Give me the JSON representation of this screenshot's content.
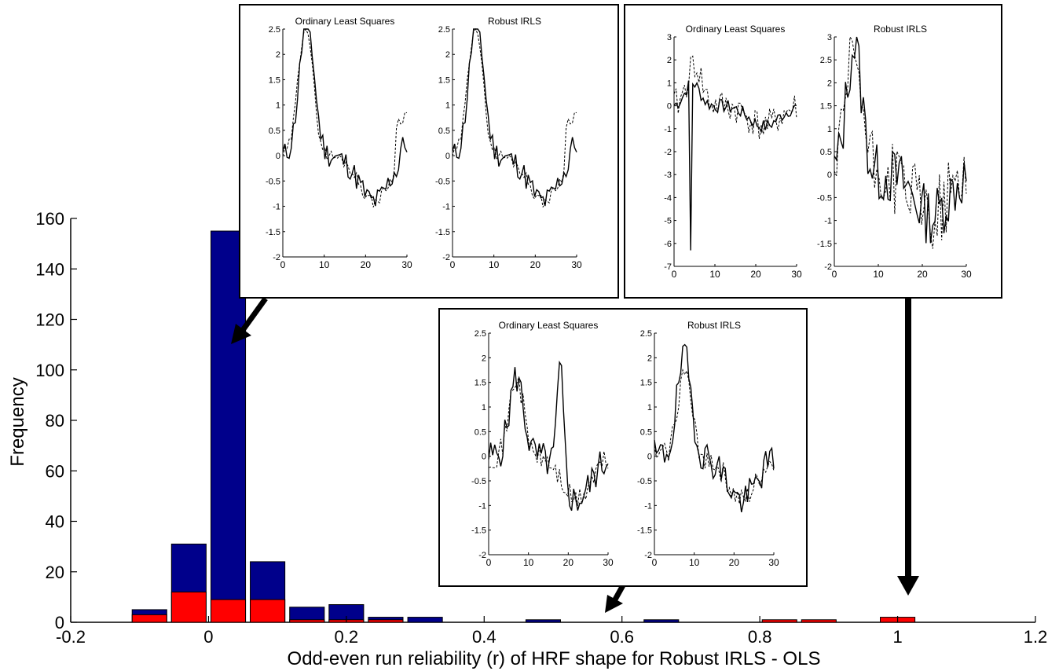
{
  "chart_data": {
    "type": "bar",
    "xlabel": "Odd-even run reliability (r) of HRF shape for Robust IRLS - OLS",
    "ylabel": "Frequency",
    "xlim": [
      -0.2,
      1.2
    ],
    "ylim": [
      0,
      160
    ],
    "x_ticks": [
      "-0.2",
      "0",
      "0.2",
      "0.4",
      "0.6",
      "0.8",
      "1",
      "1.2"
    ],
    "x_tick_values": [
      -0.2,
      0,
      0.2,
      0.4,
      0.6,
      0.8,
      1.0,
      1.2
    ],
    "y_ticks": [
      "0",
      "20",
      "40",
      "60",
      "80",
      "100",
      "120",
      "140",
      "160"
    ],
    "y_tick_values": [
      0,
      20,
      40,
      60,
      80,
      100,
      120,
      140,
      160
    ],
    "bin_centers": [
      -0.0857,
      -0.0286,
      0.0286,
      0.0857,
      0.1429,
      0.2,
      0.2571,
      0.3143,
      0.3714,
      0.4286,
      0.4857,
      0.5429,
      0.6,
      0.6571,
      0.7143,
      0.7714,
      0.8286,
      0.8857,
      0.9429,
      1.0,
      1.0571
    ],
    "bin_width": 0.0571,
    "series": [
      {
        "color": "#00008b",
        "values": [
          5,
          31,
          155,
          24,
          6,
          7,
          2,
          2,
          0,
          0,
          1,
          0,
          0,
          1,
          0,
          0,
          0,
          0,
          0,
          0,
          0
        ]
      },
      {
        "color": "#ff0000",
        "values": [
          3,
          12,
          9,
          9,
          1,
          1,
          1,
          0,
          0,
          0,
          0,
          0,
          0,
          0,
          0,
          0,
          1,
          1,
          0,
          2,
          0
        ]
      }
    ],
    "bin_centers_note": "",
    "insets": [
      {
        "id": "inset-top-left",
        "left_title": "Ordinary Least Squares",
        "right_title": "Robust IRLS",
        "ylim": [
          -2,
          2.5
        ],
        "yticks": [
          "2.5",
          "2",
          "1.5",
          "1",
          "0.5",
          "0",
          "-0.5",
          "-1",
          "-1.5",
          "-2"
        ],
        "ytick_values": [
          2.5,
          2,
          1.5,
          1,
          0.5,
          0,
          -0.5,
          -1,
          -1.5,
          -2
        ],
        "xticks": [
          "0",
          "10",
          "20",
          "30"
        ],
        "xtick_values": [
          0,
          10,
          20,
          30
        ]
      },
      {
        "id": "inset-top-right",
        "left_title": "Ordinary Least Squares",
        "right_title": "Robust IRLS",
        "left_ylim": [
          -7,
          3
        ],
        "left_yticks": [
          "3",
          "2",
          "1",
          "0",
          "-1",
          "-2",
          "-3",
          "-4",
          "-5",
          "-6",
          "-7"
        ],
        "left_ytick_values": [
          3,
          2,
          1,
          0,
          -1,
          -2,
          -3,
          -4,
          -5,
          -6,
          -7
        ],
        "right_ylim": [
          -2,
          3
        ],
        "right_yticks": [
          "3",
          "2.5",
          "2",
          "1.5",
          "1",
          "0.5",
          "0",
          "-0.5",
          "-1",
          "-1.5",
          "-2"
        ],
        "right_ytick_values": [
          3,
          2.5,
          2,
          1.5,
          1,
          0.5,
          0,
          -0.5,
          -1,
          -1.5,
          -2
        ],
        "xticks": [
          "0",
          "10",
          "20",
          "30"
        ],
        "xtick_values": [
          0,
          10,
          20,
          30
        ]
      },
      {
        "id": "inset-middle",
        "left_title": "Ordinary Least Squares",
        "right_title": "Robust IRLS",
        "ylim": [
          -2,
          2.5
        ],
        "yticks": [
          "2.5",
          "2",
          "1.5",
          "1",
          "0.5",
          "0",
          "-0.5",
          "-1",
          "-1.5",
          "-2"
        ],
        "ytick_values": [
          2.5,
          2,
          1.5,
          1,
          0.5,
          0,
          -0.5,
          -1,
          -1.5,
          -2
        ],
        "xticks": [
          "0",
          "10",
          "20",
          "30"
        ],
        "xtick_values": [
          0,
          10,
          20,
          30
        ]
      }
    ]
  }
}
